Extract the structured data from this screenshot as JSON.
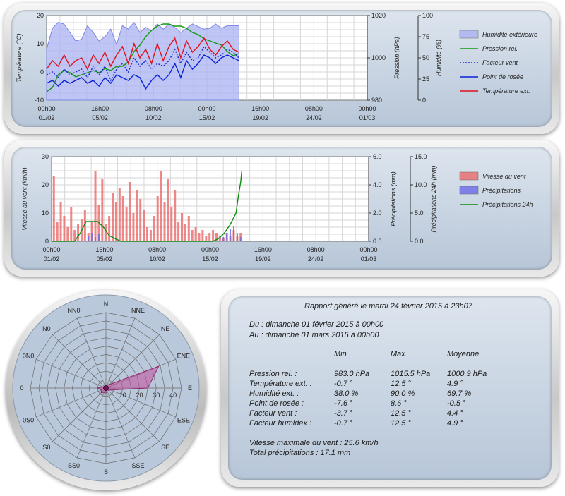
{
  "colors": {
    "humidity": "#a9b1f0",
    "pressure": "#139a13",
    "windchill": "#1a2ad6",
    "dewpoint": "#0a22d6",
    "temperature": "#e0101e",
    "wind": "#ea6a6a",
    "rain": "#6a6ae8",
    "rain24": "#0e8c0e",
    "rose_fill": "#c24e9c"
  },
  "chart_data": [
    {
      "type": "line",
      "x_ticks": [
        "00h00\n01/02",
        "16h00\n05/02",
        "08h00\n10/02",
        "00h00\n15/02",
        "16h00\n19/02",
        "08h00\n24/02",
        "00h00\n01/03"
      ],
      "ylabel": "Température (°C)",
      "ylim": [
        -10,
        20
      ],
      "y_ticks": [
        "-10",
        "0",
        "10",
        "20"
      ],
      "y2label": "Pression (hPa)",
      "y2lim": [
        980,
        1020
      ],
      "y2_ticks": [
        "980",
        "1000",
        "1020"
      ],
      "y3label": "Humidité (%)",
      "y3lim": [
        0,
        100
      ],
      "y3_ticks": [
        "0",
        "25",
        "50",
        "75",
        "100"
      ],
      "legend_position": "right",
      "series": [
        {
          "name": "Humidité extérieure",
          "style": "area",
          "axis": "y3",
          "x": [
            0,
            0.5,
            1,
            1.5,
            2,
            2.5,
            3,
            3.5,
            4,
            4.5,
            5,
            5.5,
            6,
            6.5,
            7,
            7.5,
            8,
            8.5,
            9,
            9.5,
            10,
            10.5,
            11,
            11.5,
            12,
            12.5,
            13,
            13.5,
            14,
            14.5,
            15,
            15.5,
            16,
            16.5
          ],
          "values": [
            60,
            85,
            92,
            90,
            80,
            70,
            72,
            88,
            80,
            70,
            75,
            84,
            66,
            88,
            84,
            92,
            80,
            86,
            82,
            90,
            84,
            90,
            86,
            80,
            85,
            90,
            87,
            84,
            85,
            90,
            85,
            88,
            88,
            88
          ]
        },
        {
          "name": "Pression rel.",
          "style": "line",
          "axis": "y2",
          "x": [
            0,
            0.5,
            1,
            1.5,
            2,
            2.5,
            3,
            3.5,
            4,
            4.5,
            5,
            5.5,
            6,
            6.5,
            7,
            7.5,
            8,
            8.5,
            9,
            9.5,
            10,
            10.5,
            11,
            11.5,
            12,
            12.5,
            13,
            13.5,
            14,
            14.5,
            15,
            15.5,
            16,
            16.5
          ],
          "values": [
            984,
            986,
            992,
            994,
            993,
            991,
            992,
            993,
            994,
            993,
            995,
            994,
            996,
            996,
            998,
            1003,
            1006,
            1010,
            1013,
            1015,
            1016,
            1016,
            1015,
            1015,
            1014,
            1012,
            1011,
            1009,
            1008,
            1007,
            1006,
            1003,
            1001,
            1002
          ]
        },
        {
          "name": "Facteur vent",
          "style": "dotted",
          "axis": "y",
          "x": [
            0,
            0.5,
            1,
            1.5,
            2,
            2.5,
            3,
            3.5,
            4,
            4.5,
            5,
            5.5,
            6,
            6.5,
            7,
            7.5,
            8,
            8.5,
            9,
            9.5,
            10,
            10.5,
            11,
            11.5,
            12,
            12.5,
            13,
            13.5,
            14,
            14.5,
            15,
            15.5,
            16,
            16.5
          ],
          "values": [
            -1,
            0,
            -2,
            1,
            -1,
            0,
            1,
            -2,
            2,
            -1,
            2,
            -3,
            1,
            3,
            0,
            5,
            2,
            4,
            1,
            3,
            2,
            4,
            8,
            3,
            7,
            4,
            5,
            9,
            7,
            5,
            6,
            8,
            7,
            5
          ]
        },
        {
          "name": "Point de rosée",
          "style": "line",
          "axis": "y",
          "x": [
            0,
            0.5,
            1,
            1.5,
            2,
            2.5,
            3,
            3.5,
            4,
            4.5,
            5,
            5.5,
            6,
            6.5,
            7,
            7.5,
            8,
            8.5,
            9,
            9.5,
            10,
            10.5,
            11,
            11.5,
            12,
            12.5,
            13,
            13.5,
            14,
            14.5,
            15,
            15.5,
            16,
            16.5
          ],
          "values": [
            -4,
            -3,
            -5,
            -3,
            -4,
            -3,
            -2,
            -4,
            -3,
            -5,
            -2,
            -4,
            -1,
            -2,
            -3,
            -1,
            -2,
            -6,
            -3,
            -1,
            -3,
            -1,
            3,
            -2,
            4,
            1,
            3,
            6,
            5,
            3,
            5,
            6,
            5,
            4
          ]
        },
        {
          "name": "Température ext.",
          "style": "line",
          "axis": "y",
          "x": [
            0,
            0.5,
            1,
            1.5,
            2,
            2.5,
            3,
            3.5,
            4,
            4.5,
            5,
            5.5,
            6,
            6.5,
            7,
            7.5,
            8,
            8.5,
            9,
            9.5,
            10,
            10.5,
            11,
            11.5,
            12,
            12.5,
            13,
            13.5,
            14,
            14.5,
            15,
            15.5,
            16,
            16.5
          ],
          "values": [
            1,
            4,
            2,
            6,
            2,
            4,
            5,
            1,
            6,
            3,
            7,
            2,
            6,
            9,
            3,
            10,
            5,
            8,
            3,
            10,
            4,
            9,
            12,
            5,
            11,
            7,
            9,
            12,
            8,
            6,
            9,
            11,
            8,
            7
          ]
        }
      ]
    },
    {
      "type": "bar",
      "x_ticks": [
        "00h00\n01/02",
        "16h00\n05/02",
        "08h00\n10/02",
        "00h00\n15/02",
        "16h00\n19/02",
        "08h00\n24/02",
        "00h00\n01/03"
      ],
      "ylabel": "Vitesse du vent (km/h)",
      "ylim": [
        0,
        30
      ],
      "y_ticks": [
        "0",
        "10",
        "20",
        "30"
      ],
      "y2label": "Précipitations (mm)",
      "y2lim": [
        0,
        6
      ],
      "y2_ticks": [
        "0.0",
        "2.0",
        "4.0",
        "6.0"
      ],
      "y3label": "Précipitations 24h (mm)",
      "y3lim": [
        0,
        15
      ],
      "y3_ticks": [
        "0.0",
        "5.0",
        "10.0",
        "15.0"
      ],
      "legend_position": "right",
      "series": [
        {
          "name": "Vitesse du vent",
          "style": "bar",
          "axis": "y",
          "x": [
            0.2,
            0.5,
            0.8,
            1.1,
            1.4,
            1.7,
            2,
            2.3,
            2.6,
            2.9,
            3.2,
            3.5,
            3.8,
            4.1,
            4.4,
            4.7,
            5,
            5.3,
            5.6,
            5.9,
            6.2,
            6.5,
            6.8,
            7.1,
            7.4,
            7.7,
            8,
            8.3,
            8.6,
            8.9,
            9.2,
            9.5,
            9.8,
            10.1,
            10.4,
            10.7,
            11,
            11.3,
            11.6,
            11.9,
            12.2,
            12.5,
            12.8,
            13.1,
            13.4,
            13.7,
            14,
            14.3,
            14.6,
            14.9,
            15.2,
            15.5,
            15.8,
            16.1,
            16.4
          ],
          "values": [
            23,
            7,
            14,
            9,
            5,
            12,
            4,
            6,
            8,
            11,
            3,
            7,
            25,
            13,
            22,
            6,
            9,
            17,
            14,
            19,
            16,
            12,
            21,
            10,
            18,
            15,
            11,
            5,
            4,
            9,
            16,
            25,
            14,
            22,
            12,
            18,
            7,
            10,
            6,
            9,
            4,
            5,
            3,
            4,
            2,
            3,
            4,
            3,
            2,
            1,
            3,
            2,
            4,
            2,
            3
          ]
        },
        {
          "name": "Précipitations",
          "style": "bar",
          "axis": "y2",
          "x": [
            3.2,
            3.5,
            3.8,
            4.1,
            14.9,
            15.2,
            15.5,
            15.8,
            16.1,
            16.4
          ],
          "values": [
            0.4,
            0.6,
            0.3,
            0.5,
            0.3,
            0.6,
            0.9,
            1.1,
            0.6,
            0.3
          ]
        },
        {
          "name": "Précipitations 24h",
          "style": "line",
          "axis": "y3",
          "x": [
            0,
            2,
            2.5,
            3,
            4,
            4.5,
            5,
            6,
            14,
            14.5,
            15,
            15.5,
            16,
            16.2,
            16.4,
            16.5
          ],
          "values": [
            0,
            0,
            1.5,
            3.5,
            3.5,
            2.5,
            1,
            0,
            0,
            0.5,
            1.5,
            3.0,
            5.0,
            8.0,
            10.5,
            12.5
          ]
        }
      ]
    },
    {
      "type": "radar",
      "directions": [
        "N",
        "NNE",
        "NE",
        "ENE",
        "E",
        "ESE",
        "SE",
        "SSE",
        "S",
        "SS0",
        "S0",
        "0S0",
        "0",
        "0N0",
        "N0",
        "NN0"
      ],
      "r_ticks": [
        "10",
        "20",
        "30",
        "40"
      ],
      "rlim": [
        0,
        45
      ],
      "series": [
        {
          "name": "Vitesse du vent",
          "values": [
            1,
            2,
            3,
            34,
            25,
            3,
            2,
            1,
            2,
            3,
            4,
            3,
            5,
            2,
            1,
            1
          ]
        }
      ]
    }
  ],
  "report": {
    "title": "Rapport généré le mardi 24 février 2015 à 23h07",
    "from": "Du : dimanche 01 février 2015 à 00h00",
    "to": "Au : dimanche 01 mars 2015 à 00h00",
    "headers": [
      "Min",
      "Max",
      "Moyenne"
    ],
    "rows": [
      {
        "label": "Pression rel. :",
        "min": "983.0 hPa",
        "max": "1015.5 hPa",
        "avg": "1000.9 hPa"
      },
      {
        "label": "Température ext. :",
        "min": "-0.7 °",
        "max": "12.5 °",
        "avg": "4.9 °"
      },
      {
        "label": "Humidité ext. :",
        "min": "38.0 %",
        "max": "90.0 %",
        "avg": "69.7 %"
      },
      {
        "label": "Point de rosée :",
        "min": "-7.6 °",
        "max": "8.6 °",
        "avg": "-0.5 °"
      },
      {
        "label": "Facteur vent :",
        "min": "-3.7 °",
        "max": "12.5 °",
        "avg": "4.4 °"
      },
      {
        "label": "Facteur humidex :",
        "min": "-0.7 °",
        "max": "12.5 °",
        "avg": "4.9 °"
      }
    ],
    "wind_max": "Vitesse maximale du vent : 25.6 km/h",
    "rain_total": "Total précipitations : 17.1 mm"
  }
}
